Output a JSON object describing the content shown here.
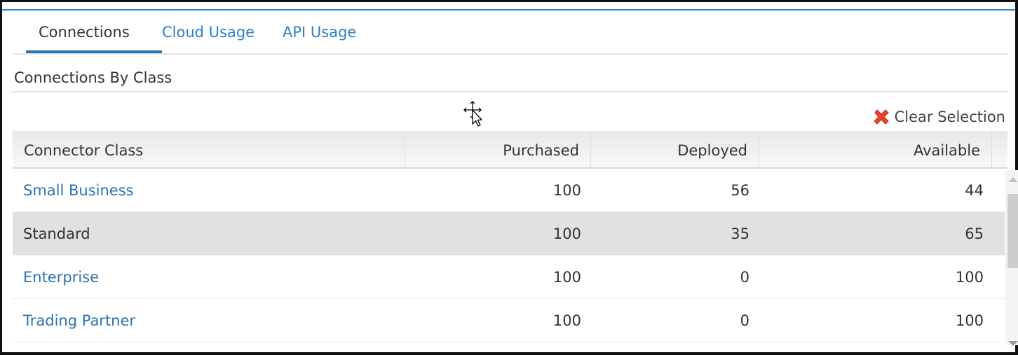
{
  "tabs": [
    {
      "label": "Connections",
      "active": true
    },
    {
      "label": "Cloud Usage",
      "active": false
    },
    {
      "label": "API Usage",
      "active": false
    }
  ],
  "section_title": "Connections By Class",
  "clear_selection": {
    "label": "Clear Selection",
    "icon": "red-x-icon"
  },
  "table": {
    "columns": [
      "Connector Class",
      "Purchased",
      "Deployed",
      "Available"
    ],
    "rows": [
      {
        "class": "Small Business",
        "purchased": "100",
        "deployed": "56",
        "available": "44",
        "selected": false
      },
      {
        "class": "Standard",
        "purchased": "100",
        "deployed": "35",
        "available": "65",
        "selected": true
      },
      {
        "class": "Enterprise",
        "purchased": "100",
        "deployed": "0",
        "available": "100",
        "selected": false
      },
      {
        "class": "Trading Partner",
        "purchased": "100",
        "deployed": "0",
        "available": "100",
        "selected": false
      }
    ]
  },
  "colors": {
    "accent": "#1f74b5",
    "link": "#2f73b0",
    "selected_row": "#e1e1e1",
    "clear_icon": "#e8462a"
  }
}
